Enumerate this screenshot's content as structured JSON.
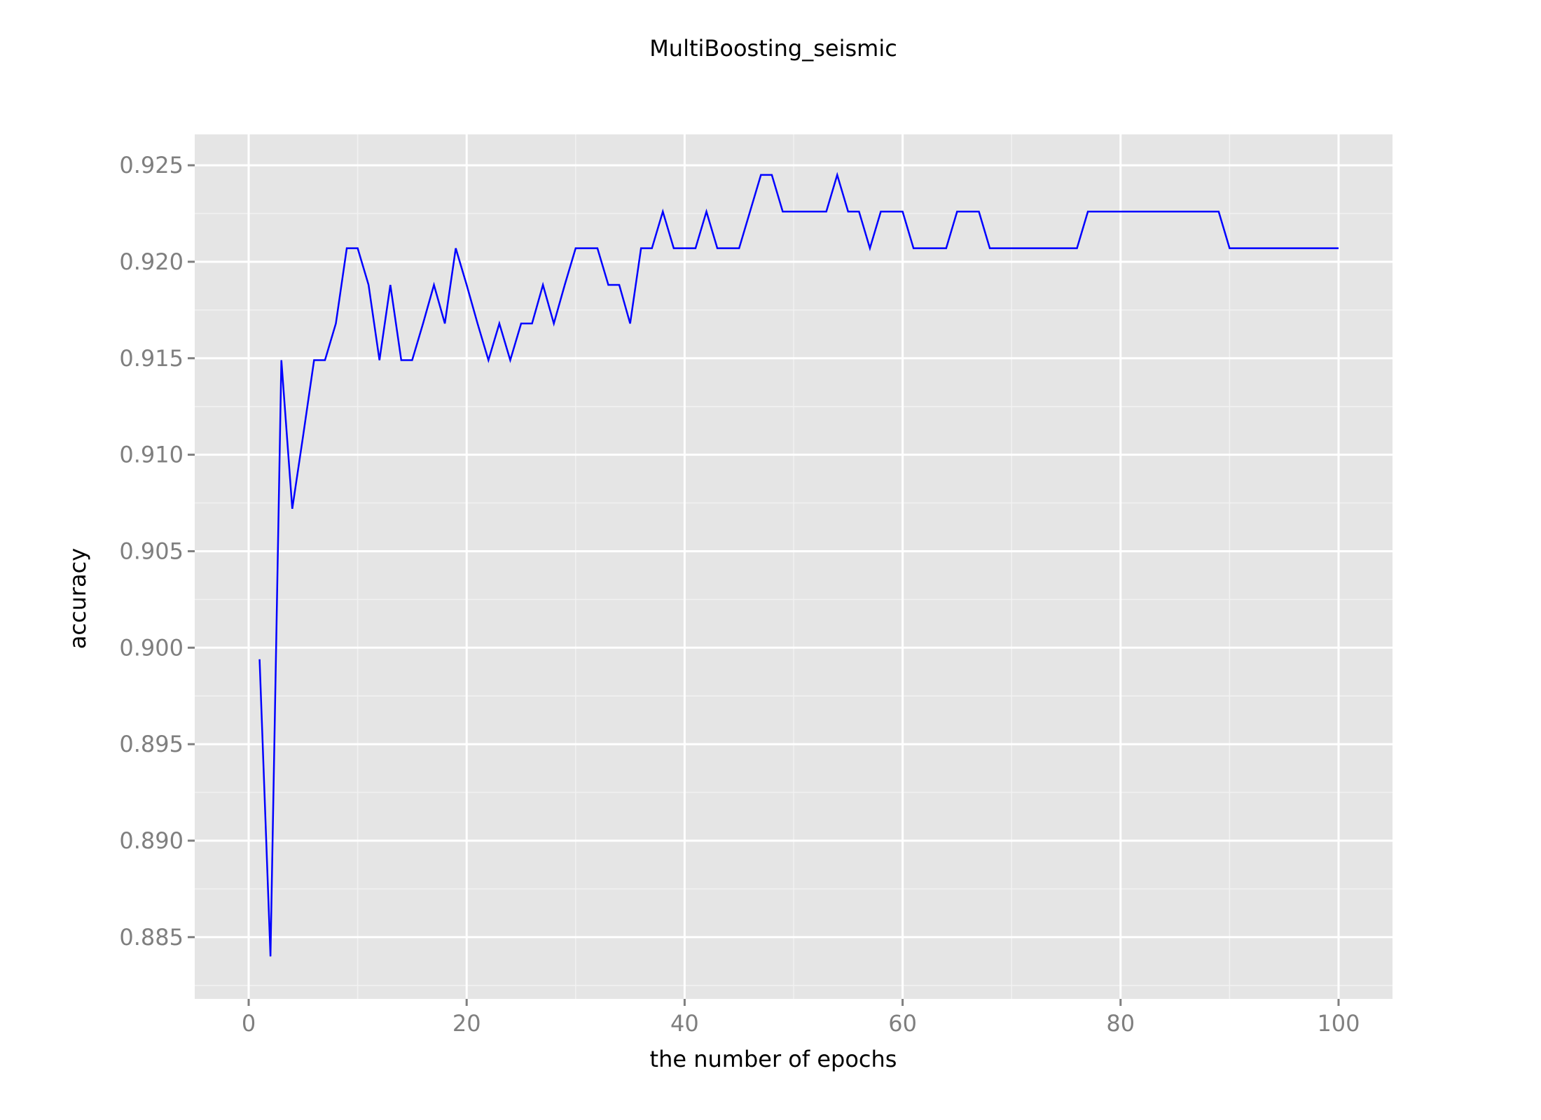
{
  "chart_data": {
    "type": "line",
    "title": "MultiBoosting_seismic",
    "xlabel": "the number of epochs",
    "ylabel": "accuracy",
    "xlim": [
      -4.95,
      104.95
    ],
    "ylim": [
      0.8818,
      0.9266
    ],
    "x_ticks": [
      0,
      20,
      40,
      60,
      80,
      100
    ],
    "x_tick_labels": [
      "0",
      "20",
      "40",
      "60",
      "80",
      "100"
    ],
    "y_ticks": [
      0.885,
      0.89,
      0.895,
      0.9,
      0.905,
      0.91,
      0.915,
      0.92,
      0.925
    ],
    "y_tick_labels": [
      "0.885",
      "0.890",
      "0.895",
      "0.900",
      "0.905",
      "0.910",
      "0.915",
      "0.920",
      "0.925"
    ],
    "grid": true,
    "series": [
      {
        "color": "#0000ff",
        "x": [
          1,
          2,
          3,
          4,
          5,
          6,
          7,
          8,
          9,
          10,
          11,
          12,
          13,
          14,
          15,
          16,
          17,
          18,
          19,
          20,
          21,
          22,
          23,
          24,
          25,
          26,
          27,
          28,
          29,
          30,
          31,
          32,
          33,
          34,
          35,
          36,
          37,
          38,
          39,
          40,
          41,
          42,
          43,
          44,
          45,
          46,
          47,
          48,
          49,
          50,
          51,
          52,
          53,
          54,
          55,
          56,
          57,
          58,
          59,
          60,
          61,
          62,
          63,
          64,
          65,
          66,
          67,
          68,
          69,
          70,
          71,
          72,
          73,
          74,
          75,
          76,
          77,
          78,
          79,
          80,
          81,
          82,
          83,
          84,
          85,
          86,
          87,
          88,
          89,
          90,
          91,
          92,
          93,
          94,
          95,
          96,
          97,
          98,
          99,
          100
        ],
        "values": [
          0.8994,
          0.884,
          0.9149,
          0.9072,
          0.911,
          0.9149,
          0.9149,
          0.9168,
          0.9207,
          0.9207,
          0.9188,
          0.9149,
          0.9188,
          0.9149,
          0.9149,
          0.9168,
          0.9188,
          0.9168,
          0.9207,
          0.9188,
          0.9168,
          0.9149,
          0.9168,
          0.9149,
          0.9168,
          0.9168,
          0.9188,
          0.9168,
          0.9188,
          0.9207,
          0.9207,
          0.9207,
          0.9188,
          0.9188,
          0.9168,
          0.9207,
          0.9207,
          0.9226,
          0.9207,
          0.9207,
          0.9207,
          0.9226,
          0.9207,
          0.9207,
          0.9207,
          0.9226,
          0.9245,
          0.9245,
          0.9226,
          0.9226,
          0.9226,
          0.9226,
          0.9226,
          0.9245,
          0.9226,
          0.9226,
          0.9207,
          0.9226,
          0.9226,
          0.9226,
          0.9207,
          0.9207,
          0.9207,
          0.9207,
          0.9226,
          0.9226,
          0.9226,
          0.9207,
          0.9207,
          0.9207,
          0.9207,
          0.9207,
          0.9207,
          0.9207,
          0.9207,
          0.9207,
          0.9226,
          0.9226,
          0.9226,
          0.9226,
          0.9226,
          0.9226,
          0.9226,
          0.9226,
          0.9226,
          0.9226,
          0.9226,
          0.9226,
          0.9226,
          0.9207,
          0.9207,
          0.9207,
          0.9207,
          0.9207,
          0.9207,
          0.9207,
          0.9207,
          0.9207,
          0.9207,
          0.9207
        ]
      }
    ]
  }
}
